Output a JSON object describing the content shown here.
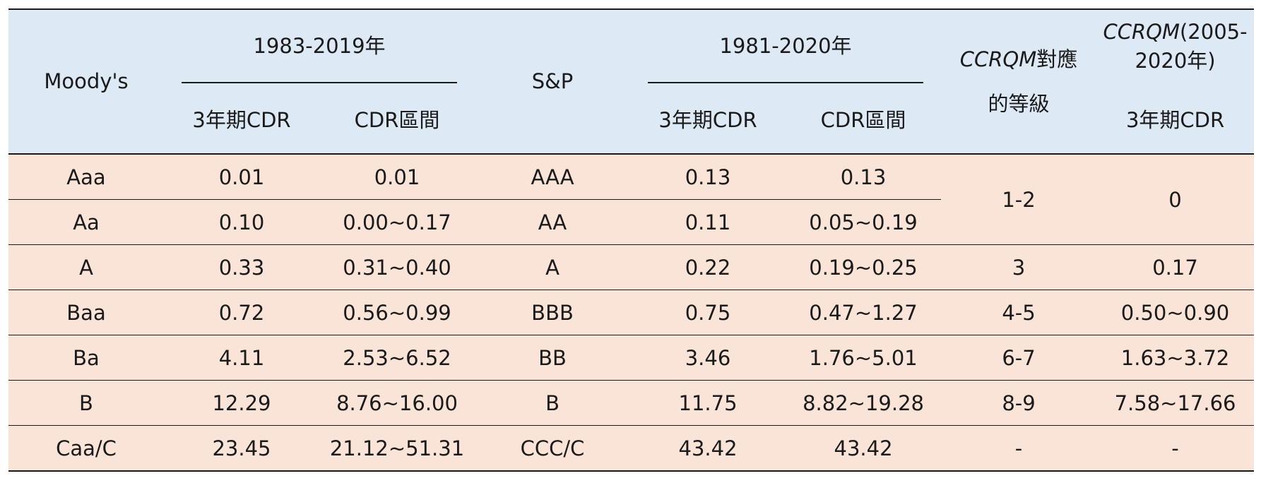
{
  "header": {
    "moodys": "Moody's",
    "moodys_period": "1983-2019年",
    "moodys_cdr": "3年期CDR",
    "moodys_range": "CDR區間",
    "sp": "S&P",
    "sp_period": "1981-2020年",
    "sp_cdr": "3年期CDR",
    "sp_range": "CDR區間",
    "ccrqm_grade_italic": "CCRQM",
    "ccrqm_grade_rest1": "對應",
    "ccrqm_grade_rest2": "的等級",
    "ccrqm_period_italic": "CCRQM",
    "ccrqm_period_rest1": "(2005-",
    "ccrqm_period_rest2": "2020年)",
    "ccrqm_cdr": "3年期CDR"
  },
  "rows": [
    {
      "moody": "Aaa",
      "m_cdr": "0.01",
      "m_range": "0.01",
      "sp": "AAA",
      "s_cdr": "0.13",
      "s_range": "0.13"
    },
    {
      "moody": "Aa",
      "m_cdr": "0.10",
      "m_range": "0.00~0.17",
      "sp": "AA",
      "s_cdr": "0.11",
      "s_range": "0.05~0.19"
    },
    {
      "moody": "A",
      "m_cdr": "0.33",
      "m_range": "0.31~0.40",
      "sp": "A",
      "s_cdr": "0.22",
      "s_range": "0.19~0.25",
      "cc_grade": "3",
      "cc_cdr": "0.17"
    },
    {
      "moody": "Baa",
      "m_cdr": "0.72",
      "m_range": "0.56~0.99",
      "sp": "BBB",
      "s_cdr": "0.75",
      "s_range": "0.47~1.27",
      "cc_grade": "4-5",
      "cc_cdr": "0.50~0.90"
    },
    {
      "moody": "Ba",
      "m_cdr": "4.11",
      "m_range": "2.53~6.52",
      "sp": "BB",
      "s_cdr": "3.46",
      "s_range": "1.76~5.01",
      "cc_grade": "6-7",
      "cc_cdr": "1.63~3.72"
    },
    {
      "moody": "B",
      "m_cdr": "12.29",
      "m_range": "8.76~16.00",
      "sp": "B",
      "s_cdr": "11.75",
      "s_range": "8.82~19.28",
      "cc_grade": "8-9",
      "cc_cdr": "7.58~17.66"
    },
    {
      "moody": "Caa/C",
      "m_cdr": "23.45",
      "m_range": "21.12~51.31",
      "sp": "CCC/C",
      "s_cdr": "43.42",
      "s_range": "43.42",
      "cc_grade": "-",
      "cc_cdr": "-"
    }
  ],
  "merged": {
    "cc_grade_top": "1-2",
    "cc_cdr_top": "0"
  }
}
